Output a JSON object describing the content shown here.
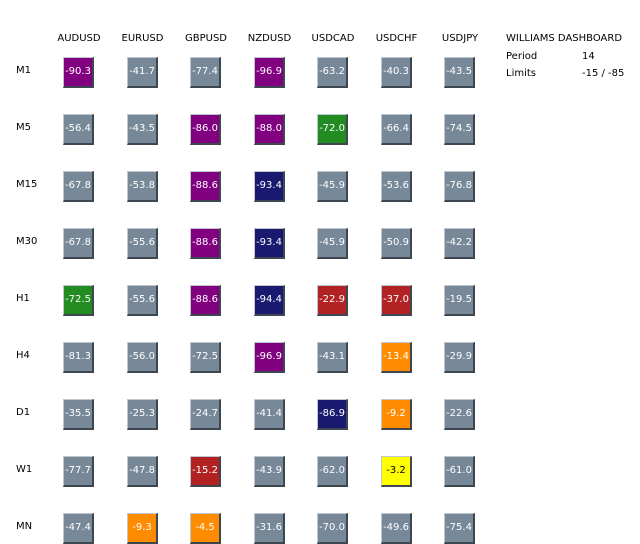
{
  "colors": {
    "gray": "#778899",
    "purple": "#800080",
    "navy": "#191970",
    "green": "#228b22",
    "red": "#b22222",
    "orange": "#ff8c00",
    "yellow": "#ffff00"
  },
  "columns": [
    "AUDUSD",
    "EURUSD",
    "GBPUSD",
    "NZDUSD",
    "USDCAD",
    "USDCHF",
    "USDJPY"
  ],
  "rows": [
    {
      "label": "M1",
      "cells": [
        {
          "value": "-90.3",
          "color": "purple"
        },
        {
          "value": "-41.7",
          "color": "gray"
        },
        {
          "value": "-77.4",
          "color": "gray"
        },
        {
          "value": "-96.9",
          "color": "purple"
        },
        {
          "value": "-63.2",
          "color": "gray"
        },
        {
          "value": "-40.3",
          "color": "gray"
        },
        {
          "value": "-43.5",
          "color": "gray"
        }
      ]
    },
    {
      "label": "M5",
      "cells": [
        {
          "value": "-56.4",
          "color": "gray"
        },
        {
          "value": "-43.5",
          "color": "gray"
        },
        {
          "value": "-86.0",
          "color": "purple"
        },
        {
          "value": "-88.0",
          "color": "purple"
        },
        {
          "value": "-72.0",
          "color": "green"
        },
        {
          "value": "-66.4",
          "color": "gray"
        },
        {
          "value": "-74.5",
          "color": "gray"
        }
      ]
    },
    {
      "label": "M15",
      "cells": [
        {
          "value": "-67.8",
          "color": "gray"
        },
        {
          "value": "-53.8",
          "color": "gray"
        },
        {
          "value": "-88.6",
          "color": "purple"
        },
        {
          "value": "-93.4",
          "color": "navy"
        },
        {
          "value": "-45.9",
          "color": "gray"
        },
        {
          "value": "-53.6",
          "color": "gray"
        },
        {
          "value": "-76.8",
          "color": "gray"
        }
      ]
    },
    {
      "label": "M30",
      "cells": [
        {
          "value": "-67.8",
          "color": "gray"
        },
        {
          "value": "-55.6",
          "color": "gray"
        },
        {
          "value": "-88.6",
          "color": "purple"
        },
        {
          "value": "-93.4",
          "color": "navy"
        },
        {
          "value": "-45.9",
          "color": "gray"
        },
        {
          "value": "-50.9",
          "color": "gray"
        },
        {
          "value": "-42.2",
          "color": "gray"
        }
      ]
    },
    {
      "label": "H1",
      "cells": [
        {
          "value": "-72.5",
          "color": "green"
        },
        {
          "value": "-55.6",
          "color": "gray"
        },
        {
          "value": "-88.6",
          "color": "purple"
        },
        {
          "value": "-94.4",
          "color": "navy"
        },
        {
          "value": "-22.9",
          "color": "red"
        },
        {
          "value": "-37.0",
          "color": "red"
        },
        {
          "value": "-19.5",
          "color": "gray"
        }
      ]
    },
    {
      "label": "H4",
      "cells": [
        {
          "value": "-81.3",
          "color": "gray"
        },
        {
          "value": "-56.0",
          "color": "gray"
        },
        {
          "value": "-72.5",
          "color": "gray"
        },
        {
          "value": "-96.9",
          "color": "purple"
        },
        {
          "value": "-43.1",
          "color": "gray"
        },
        {
          "value": "-13.4",
          "color": "orange"
        },
        {
          "value": "-29.9",
          "color": "gray"
        }
      ]
    },
    {
      "label": "D1",
      "cells": [
        {
          "value": "-35.5",
          "color": "gray"
        },
        {
          "value": "-25.3",
          "color": "gray"
        },
        {
          "value": "-24.7",
          "color": "gray"
        },
        {
          "value": "-41.4",
          "color": "gray"
        },
        {
          "value": "-86.9",
          "color": "navy"
        },
        {
          "value": "-9.2",
          "color": "orange"
        },
        {
          "value": "-22.6",
          "color": "gray"
        }
      ]
    },
    {
      "label": "W1",
      "cells": [
        {
          "value": "-77.7",
          "color": "gray"
        },
        {
          "value": "-47.8",
          "color": "gray"
        },
        {
          "value": "-15.2",
          "color": "red"
        },
        {
          "value": "-43.9",
          "color": "gray"
        },
        {
          "value": "-62.0",
          "color": "gray"
        },
        {
          "value": "-3.2",
          "color": "yellow"
        },
        {
          "value": "-61.0",
          "color": "gray"
        }
      ]
    },
    {
      "label": "MN",
      "cells": [
        {
          "value": "-47.4",
          "color": "gray"
        },
        {
          "value": "-9.3",
          "color": "orange"
        },
        {
          "value": "-4.5",
          "color": "orange"
        },
        {
          "value": "-31.6",
          "color": "gray"
        },
        {
          "value": "-70.0",
          "color": "gray"
        },
        {
          "value": "-49.6",
          "color": "gray"
        },
        {
          "value": "-75.4",
          "color": "gray"
        }
      ]
    }
  ],
  "info": {
    "title": "WILLIAMS DASHBOARD",
    "period_label": "Period",
    "period_value": "14",
    "limits_label": "Limits",
    "limits_value": "-15 / -85"
  }
}
